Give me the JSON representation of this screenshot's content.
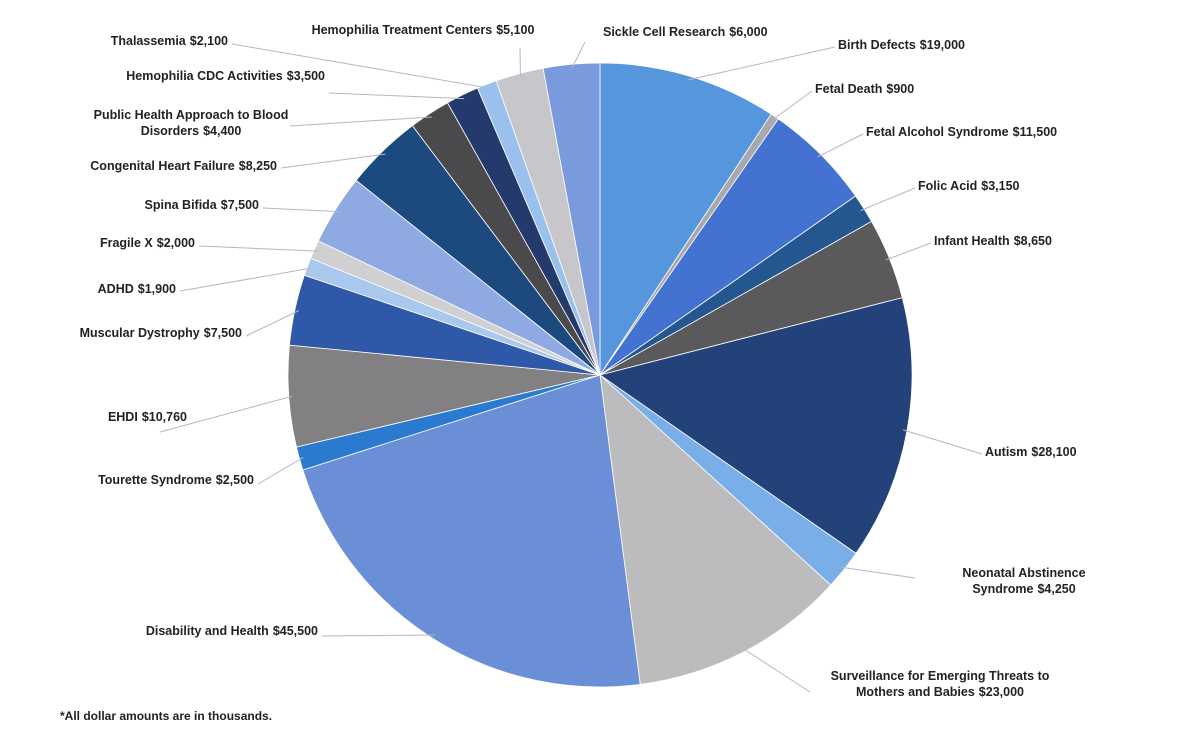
{
  "chart_data": {
    "type": "pie",
    "categories": [
      "Birth Defects",
      "Fetal Death",
      "Fetal Alcohol Syndrome",
      "Folic Acid",
      "Infant Health",
      "Autism",
      "Neonatal Abstinence Syndrome",
      "Surveillance for Emerging Threats to Mothers and Babies",
      "Disability and Health",
      "Tourette Syndrome",
      "EHDI",
      "Muscular Dystrophy",
      "ADHD",
      "Fragile X",
      "Spina Bifida",
      "Congenital Heart Failure",
      "Public Health Approach to Blood Disorders",
      "Hemophilia CDC Activities",
      "Thalassemia",
      "Hemophilia Treatment Centers",
      "Sickle Cell Research"
    ],
    "values": [
      19000,
      900,
      11500,
      3150,
      8650,
      28100,
      4250,
      23000,
      45500,
      2500,
      10760,
      7500,
      1900,
      2000,
      7500,
      8250,
      4400,
      3500,
      2100,
      5100,
      6000
    ],
    "value_labels": [
      "$19,000",
      "$900",
      "$11,500",
      "$3,150",
      "$8,650",
      "$28,100",
      "$4,250",
      "$23,000",
      "$45,500",
      "$2,500",
      "$10,760",
      "$7,500",
      "$1,900",
      "$2,000",
      "$7,500",
      "$8,250",
      "$4,400",
      "$3,500",
      "$2,100",
      "$5,100",
      "$6,000"
    ],
    "colors": [
      "#5596dc",
      "#a7a9ac",
      "#4472d0",
      "#24568f",
      "#5a595b",
      "#24427a",
      "#7aaee8",
      "#bcbbbe",
      "#6a8fd6",
      "#2a7bd0",
      "#828083",
      "#2f59a8",
      "#a8c8ee",
      "#d0cfd2",
      "#8faae3",
      "#1d4a7e",
      "#4a4a4d",
      "#253a6c",
      "#9ac0ee",
      "#c7c6ca",
      "#7a9ade"
    ],
    "note": "*All dollar amounts are in thousands."
  }
}
